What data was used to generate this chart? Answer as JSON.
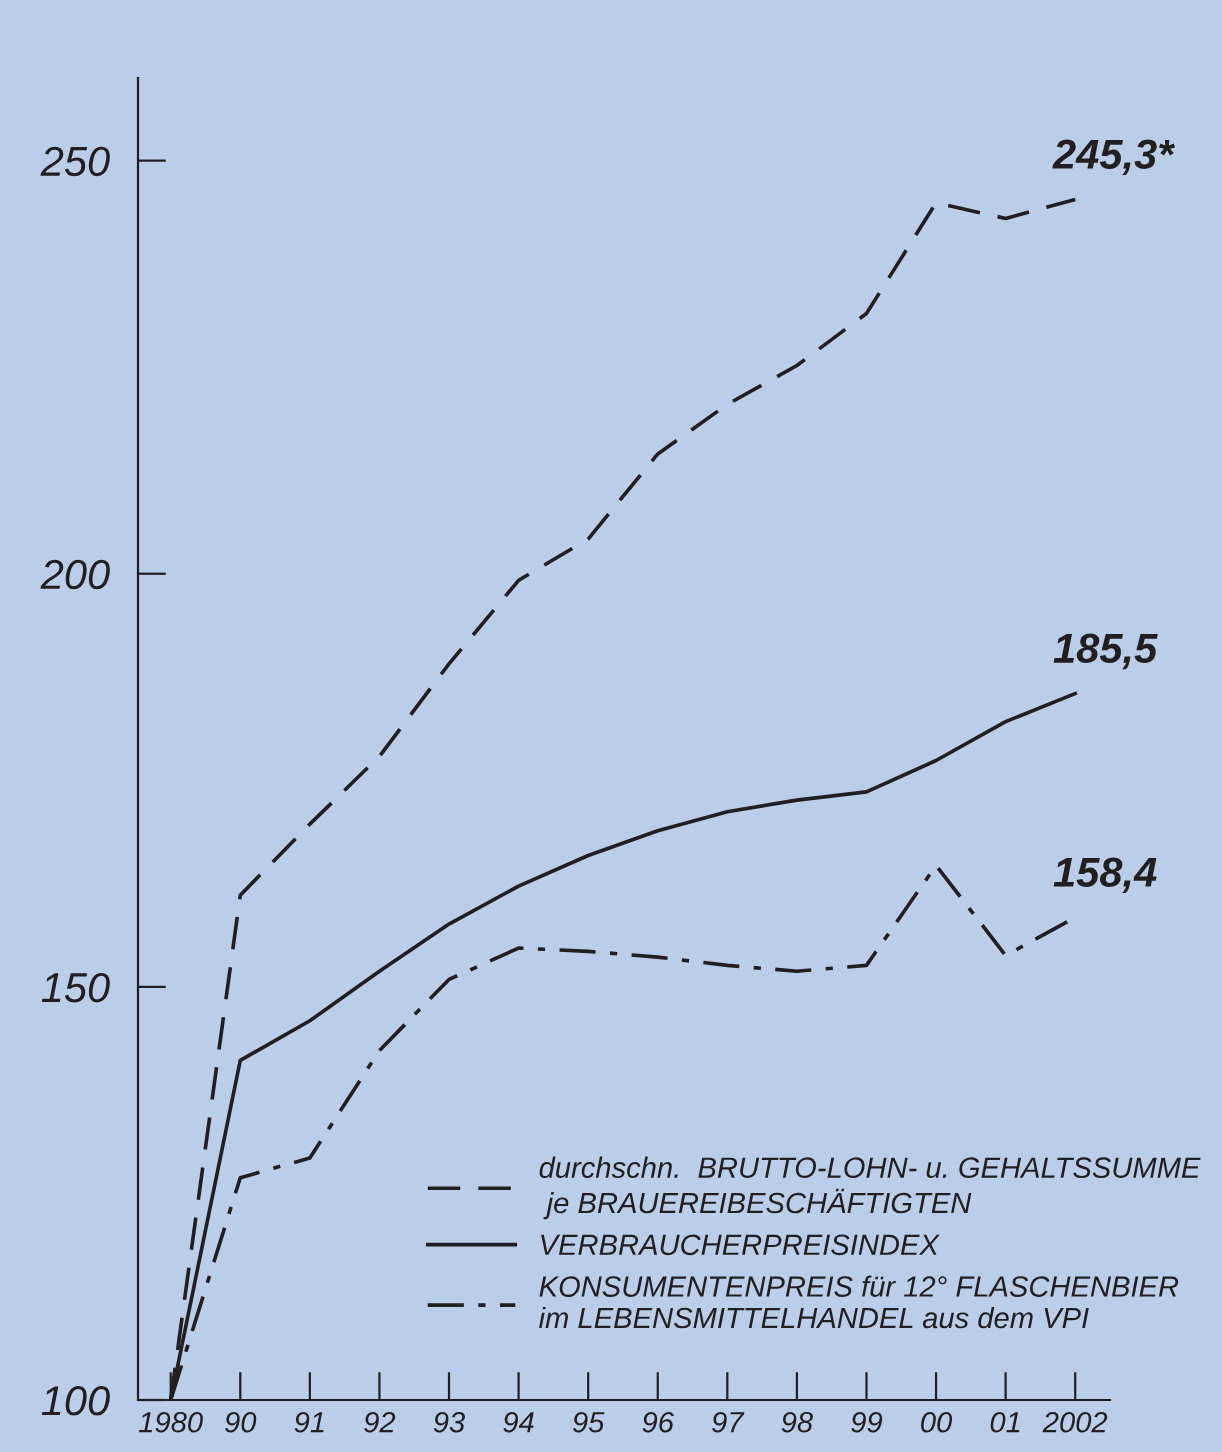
{
  "chart_data": {
    "type": "line",
    "categories": [
      "1980",
      "90",
      "91",
      "92",
      "93",
      "94",
      "95",
      "96",
      "97",
      "98",
      "99",
      "00",
      "01",
      "2002"
    ],
    "series": [
      {
        "name": "durchschn.  BRUTTO-LOHN- u. GEHALTSSUMME\n je BRAUEREIBESCHÄFTIGTEN",
        "color": "#231f20",
        "line_style": "dashed",
        "values": [
          100,
          161.1,
          169.7,
          177.9,
          189.1,
          199.2,
          204.2,
          214.5,
          220.5,
          225.2,
          231.5,
          244.9,
          243.0,
          245.3
        ]
      },
      {
        "name": "VERBRAUCHERPREISINDEX",
        "color": "#231f20",
        "line_style": "solid",
        "values": [
          100,
          141.1,
          145.9,
          151.9,
          157.6,
          162.2,
          165.9,
          168.9,
          171.2,
          172.6,
          173.6,
          177.4,
          182.1,
          185.5
        ]
      },
      {
        "name": "KONSUMENTENPREIS für 12° FLASCHENBIER\nim LEBENSMITTELHANDEL aus dem VPI",
        "color": "#231f20",
        "line_style": "dashdot",
        "values": [
          100,
          126.9,
          129.3,
          142.3,
          150.9,
          154.7,
          154.3,
          153.6,
          152.6,
          151.9,
          152.6,
          164.7,
          153.8,
          158.4
        ]
      }
    ],
    "ylim": [
      100,
      260
    ],
    "yticks": [
      100,
      150,
      200,
      250
    ],
    "annotations": [
      {
        "text": "245,3*",
        "x": "2002",
        "y": 245.3
      },
      {
        "text": "185,5",
        "x": "2002",
        "y": 185.5
      },
      {
        "text": "158,4",
        "x": "2002",
        "y": 158.4
      }
    ],
    "grid": false,
    "legend": "bottom right",
    "marker": "none"
  }
}
